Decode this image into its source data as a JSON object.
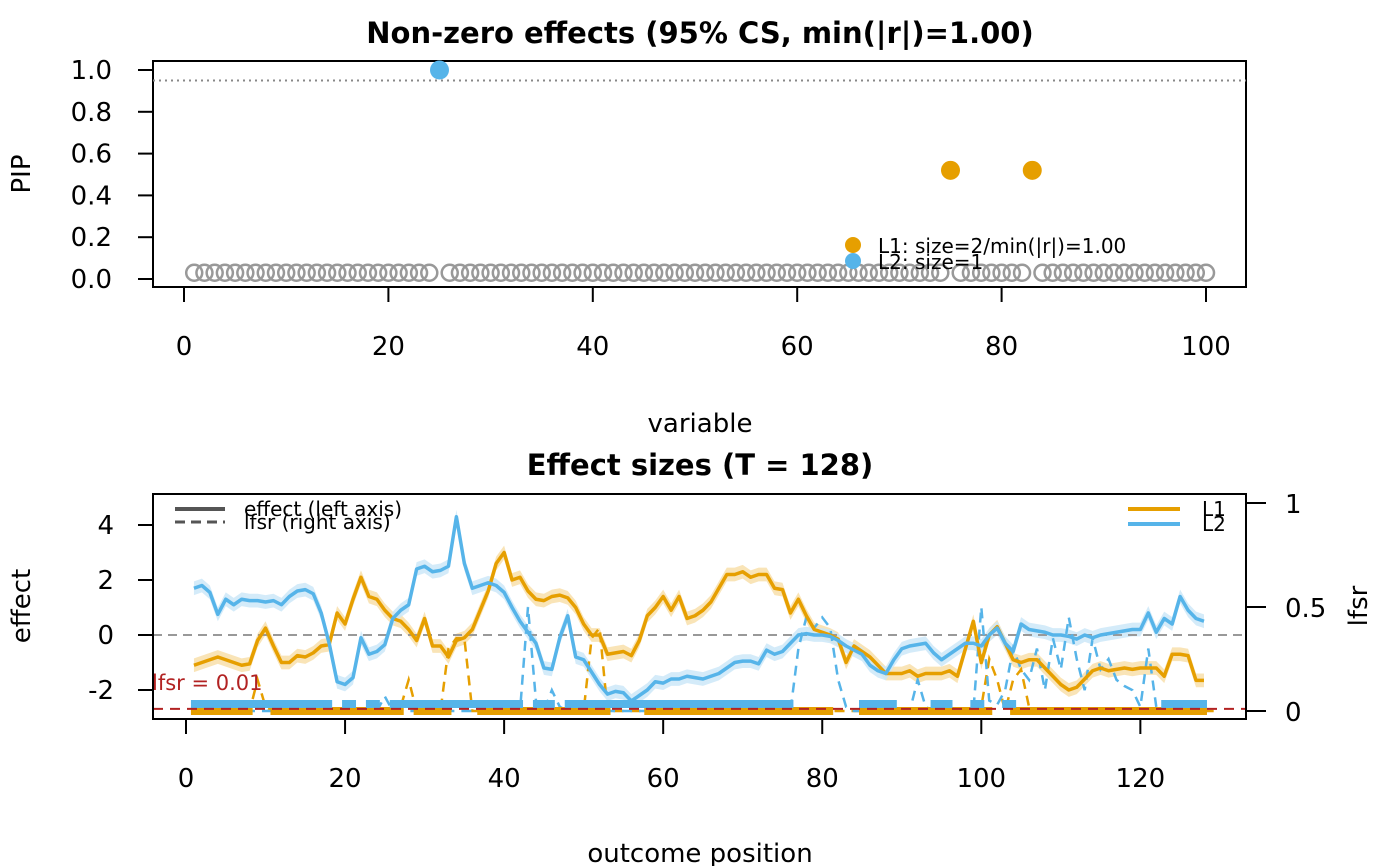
{
  "chart_data": [
    {
      "type": "scatter",
      "title": "Non-zero effects (95% CS, min(|r|)=1.00)",
      "xlabel": "variable",
      "ylabel": "PIP",
      "xlim": [
        0,
        100
      ],
      "ylim": [
        0,
        1
      ],
      "xticks": [
        "0",
        "20",
        "40",
        "60",
        "80",
        "100"
      ],
      "yticks": [
        "0.0",
        "0.2",
        "0.4",
        "0.6",
        "0.8",
        "1.0"
      ],
      "threshold_line": 0.95,
      "n_variables": 100,
      "background_pip": 0.03,
      "background_color": "#999999",
      "series": [
        {
          "name": "L1: size=2/min(|r|)=1.00",
          "color": "#E69F00",
          "x": [
            75,
            83
          ],
          "y": [
            0.52,
            0.52
          ]
        },
        {
          "name": "L2: size=1",
          "color": "#56B4E9",
          "x": [
            25
          ],
          "y": [
            1.0
          ]
        }
      ],
      "legend": {
        "position": "bottom-right",
        "entries": [
          "L1: size=2/min(|r|)=1.00",
          "L2: size=1"
        ]
      }
    },
    {
      "type": "line",
      "title": "Effect sizes (T = 128)",
      "xlabel": "outcome position",
      "ylabel": "effect",
      "ylabel_right": "lfsr",
      "xlim": [
        0,
        128
      ],
      "ylim": [
        -3,
        5
      ],
      "ylim_right": [
        0,
        1
      ],
      "xticks": [
        "0",
        "20",
        "40",
        "60",
        "80",
        "100",
        "120"
      ],
      "yticks": [
        "-2",
        "0",
        "2",
        "4"
      ],
      "yticks_right": [
        "0",
        "0.5",
        "1"
      ],
      "lfsr_threshold": 0.01,
      "lfsr_threshold_label": "lfsr = 0.01",
      "zero_line": 0,
      "legend_linetype": [
        {
          "label": "effect (left axis)",
          "style": "solid"
        },
        {
          "label": "lfsr (right axis)",
          "style": "dashed"
        }
      ],
      "legend_series": [
        "L1",
        "L2"
      ],
      "series": [
        {
          "name": "L1",
          "color": "#E69F00",
          "effect": [
            -1.1,
            -1.0,
            -0.9,
            -0.8,
            -0.9,
            -1.0,
            -1.1,
            -1.05,
            -0.2,
            0.25,
            -0.4,
            -1.0,
            -1.0,
            -0.75,
            -0.8,
            -0.65,
            -0.4,
            -0.35,
            0.8,
            0.4,
            1.3,
            2.1,
            1.4,
            1.3,
            0.9,
            0.6,
            0.5,
            0.2,
            -0.2,
            0.6,
            -0.4,
            -0.4,
            -0.8,
            -0.2,
            -0.1,
            0.2,
            0.9,
            1.6,
            2.6,
            3.0,
            2.0,
            2.1,
            1.6,
            1.3,
            1.25,
            1.4,
            1.45,
            1.35,
            1.0,
            0.4,
            0.0,
            0.0,
            -0.7,
            -0.65,
            -0.6,
            -0.75,
            -0.2,
            0.7,
            1.0,
            1.4,
            0.9,
            1.4,
            0.6,
            0.7,
            0.9,
            1.2,
            1.7,
            2.2,
            2.2,
            2.3,
            2.1,
            2.2,
            2.2,
            1.7,
            1.65,
            0.8,
            1.3,
            0.7,
            0.2,
            0.1,
            0.0,
            -0.15,
            -1.0,
            -0.4,
            -0.6,
            -0.8,
            -1.1,
            -1.4,
            -1.4,
            -1.4,
            -1.3,
            -1.5,
            -1.4,
            -1.4,
            -1.4,
            -1.3,
            -1.5,
            -0.5,
            0.5,
            -1.0,
            0.0,
            0.3,
            -0.3,
            -0.9,
            -1.0,
            -0.9,
            -0.9,
            -1.2,
            -1.5,
            -1.8,
            -2.0,
            -1.9,
            -1.6,
            -1.3,
            -1.2,
            -1.3,
            -1.25,
            -1.2,
            -1.25,
            -1.2,
            -1.2,
            -1.2,
            -1.5,
            -0.7,
            -0.7,
            -0.75,
            -1.65,
            -1.65
          ],
          "lfsr": [
            0,
            0,
            0,
            0,
            0,
            0,
            0,
            0,
            0.15,
            0.02,
            0,
            0,
            0,
            0,
            0,
            0,
            0,
            0,
            0,
            0,
            0,
            0,
            0,
            0,
            0,
            0,
            0.02,
            0.15,
            0,
            0,
            0,
            0,
            0.3,
            0.35,
            0.35,
            0,
            0,
            0,
            0,
            0,
            0,
            0,
            0,
            0,
            0,
            0,
            0,
            0,
            0,
            0,
            0.35,
            0.4,
            0,
            0,
            0,
            0,
            0,
            0,
            0,
            0,
            0,
            0,
            0,
            0,
            0,
            0,
            0,
            0,
            0,
            0,
            0,
            0,
            0,
            0,
            0,
            0,
            0,
            0,
            0,
            0,
            0,
            0,
            0,
            0,
            0,
            0,
            0,
            0,
            0,
            0,
            0,
            0,
            0,
            0,
            0,
            0,
            0,
            0,
            0,
            0.02,
            0.25,
            0.15,
            0,
            0.15,
            0.2,
            0.02,
            0,
            0,
            0,
            0,
            0,
            0,
            0,
            0,
            0,
            0,
            0,
            0,
            0,
            0,
            0,
            0,
            0,
            0,
            0,
            0,
            0,
            0,
            0,
            0
          ]
        },
        {
          "name": "L2",
          "color": "#56B4E9",
          "effect": [
            1.7,
            1.8,
            1.55,
            0.75,
            1.3,
            1.1,
            1.3,
            1.25,
            1.25,
            1.2,
            1.25,
            1.1,
            1.4,
            1.6,
            1.65,
            1.5,
            0.8,
            -0.3,
            -1.7,
            -1.8,
            -1.55,
            -0.1,
            -0.7,
            -0.6,
            -0.35,
            0.6,
            0.9,
            1.1,
            2.4,
            2.5,
            2.3,
            2.35,
            2.5,
            4.3,
            2.6,
            1.7,
            1.8,
            1.9,
            1.8,
            1.55,
            1.0,
            0.5,
            0.1,
            -0.3,
            -1.2,
            -1.25,
            -0.1,
            0.7,
            -0.8,
            -0.9,
            -1.35,
            -1.8,
            -2.15,
            -2.05,
            -2.1,
            -2.4,
            -2.2,
            -2.0,
            -1.7,
            -1.75,
            -1.6,
            -1.6,
            -1.5,
            -1.55,
            -1.6,
            -1.5,
            -1.4,
            -1.2,
            -1.0,
            -0.95,
            -0.95,
            -1.05,
            -0.55,
            -0.7,
            -0.6,
            -0.3,
            0.0,
            0.05,
            0.0,
            0.0,
            -0.05,
            -0.2,
            -0.4,
            -0.55,
            -0.7,
            -1.1,
            -1.3,
            -1.4,
            -0.9,
            -0.5,
            -0.4,
            -0.35,
            -0.3,
            -0.65,
            -0.9,
            -0.7,
            -0.5,
            -0.3,
            -0.3,
            -0.4,
            0.0,
            0.25,
            -0.3,
            -0.6,
            0.4,
            0.2,
            0.15,
            0.1,
            0.0,
            0.0,
            -0.05,
            -0.15,
            0.0,
            -0.1,
            0.0,
            0.05,
            0.1,
            0.15,
            0.2,
            0.2,
            0.8,
            0.1,
            0.6,
            0.4,
            1.4,
            0.9,
            0.6,
            0.5
          ],
          "lfsr": [
            0,
            0,
            0,
            0,
            0,
            0,
            0,
            0,
            0,
            0,
            0,
            0,
            0,
            0,
            0,
            0,
            0,
            0,
            0,
            0,
            0.03,
            0,
            0,
            0,
            0.07,
            0,
            0,
            0,
            0,
            0,
            0,
            0,
            0,
            0,
            0,
            0,
            0,
            0,
            0,
            0,
            0,
            0,
            0.5,
            0.05,
            0,
            0.1,
            0.02,
            0,
            0,
            0,
            0,
            0,
            0,
            0,
            0,
            0,
            0,
            0,
            0,
            0,
            0,
            0,
            0,
            0,
            0,
            0,
            0,
            0,
            0,
            0,
            0,
            0,
            0,
            0,
            0,
            0,
            0.3,
            0.45,
            0.4,
            0.45,
            0.4,
            0.15,
            0.02,
            0,
            0,
            0,
            0,
            0,
            0,
            0,
            0,
            0.15,
            0.02,
            0,
            0,
            0,
            0,
            0,
            0,
            0.5,
            0.05,
            0.03,
            0.1,
            0.3,
            0.2,
            0.15,
            0.3,
            0.1,
            0.35,
            0.2,
            0.45,
            0.25,
            0.1,
            0.35,
            0.2,
            0.25,
            0.15,
            0.12,
            0.1,
            0.02,
            0.3,
            0.02,
            0,
            0,
            0,
            0,
            0,
            0
          ]
        }
      ],
      "cs_markers": {
        "L1": [
          [
            1,
            8
          ],
          [
            11,
            27
          ],
          [
            29,
            33
          ],
          [
            37,
            53
          ],
          [
            58,
            81
          ],
          [
            85,
            101
          ],
          [
            104,
            128
          ]
        ],
        "L2": [
          [
            1,
            18
          ],
          [
            20,
            21
          ],
          [
            23,
            24
          ],
          [
            26,
            42
          ],
          [
            44,
            46
          ],
          [
            48,
            76
          ],
          [
            85,
            89
          ],
          [
            94,
            96
          ],
          [
            99,
            100
          ],
          [
            103,
            104
          ],
          [
            123,
            128
          ]
        ]
      }
    }
  ]
}
